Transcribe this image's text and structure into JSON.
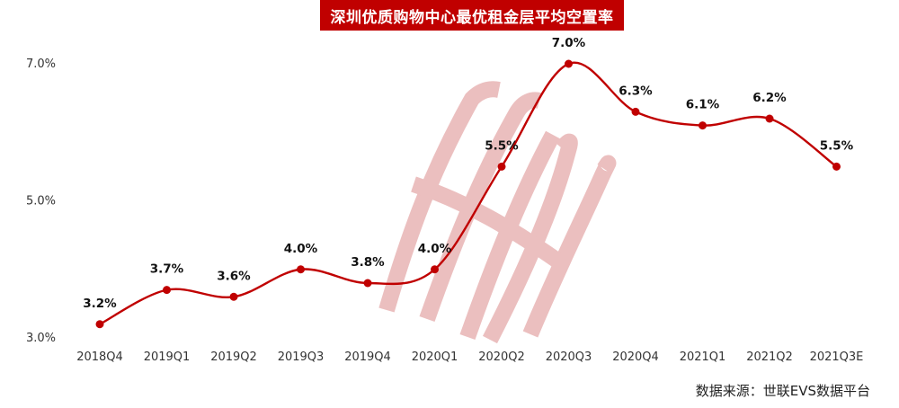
{
  "chart_data": {
    "type": "line",
    "title": "深圳优质购物中心最优租金层平均空置率",
    "categories": [
      "2018Q4",
      "2019Q1",
      "2019Q2",
      "2019Q3",
      "2019Q4",
      "2020Q1",
      "2020Q2",
      "2020Q3",
      "2020Q4",
      "2021Q1",
      "2021Q2",
      "2021Q3E"
    ],
    "series": [
      {
        "values": [
          3.2,
          3.7,
          3.6,
          4.0,
          3.8,
          4.0,
          5.5,
          7.0,
          6.3,
          6.1,
          6.2,
          5.5
        ],
        "labels": [
          "3.2%",
          "3.7%",
          "3.6%",
          "4.0%",
          "3.8%",
          "4.0%",
          "5.5%",
          "7.0%",
          "6.3%",
          "6.1%",
          "6.2%",
          "5.5%"
        ]
      }
    ],
    "yticks": [
      "3.0%",
      "5.0%",
      "7.0%"
    ],
    "ylim": [
      3.0,
      7.0
    ],
    "xlabel": "",
    "ylabel": "",
    "grid": false,
    "line_color": "#c00000"
  },
  "source": "数据来源：世联EVS数据平台"
}
